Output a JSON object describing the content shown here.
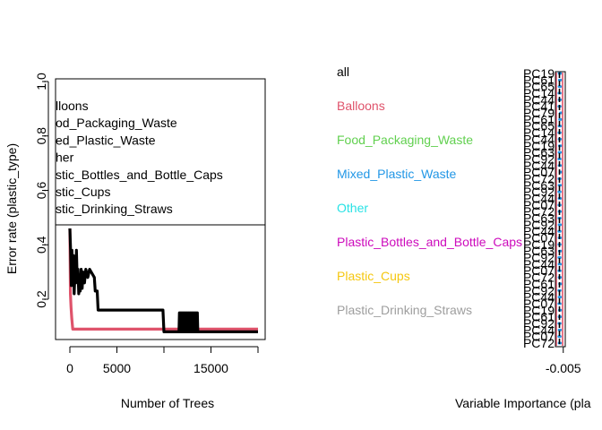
{
  "colors": {
    "all": "#000000",
    "Balloons": "#DF536B",
    "Food_Packaging_Waste": "#61D04F",
    "Mixed_Plastic_Waste": "#2297E6",
    "Other": "#28E2E5",
    "Plastic_Bottles_and_Bottle_Caps": "#CD0BBC",
    "Plastic_Cups": "#F5C710",
    "Plastic_Drinking_Straws": "#9E9E9E"
  },
  "chart_data": [
    {
      "type": "line",
      "xlabel": "Number of Trees",
      "ylabel": "Error rate (plastic_type)",
      "xlim": [
        0,
        20000
      ],
      "ylim": [
        0.06,
        1.04
      ],
      "x_ticks": [
        "0",
        "5000",
        "15000"
      ],
      "x_tick_values": [
        0,
        5000,
        15000
      ],
      "y_ticks": [
        "0.2",
        "0.4",
        "0.6",
        "0.8",
        "1.0"
      ],
      "y_tick_values": [
        0.2,
        0.4,
        0.6,
        0.8,
        1.0
      ],
      "legend_entries": [
        "lloons",
        "od_Packaging_Waste",
        "ed_Plastic_Waste",
        "her",
        "stic_Bottles_and_Bottle_Caps",
        "stic_Cups",
        "stic_Drinking_Straws"
      ],
      "series": [
        {
          "color": "#DF536B",
          "points": [
            [
              0,
              0.46
            ],
            [
              60,
              0.22
            ],
            [
              120,
              0.17
            ],
            [
              200,
              0.13
            ],
            [
              300,
              0.09
            ],
            [
              5000,
              0.09
            ],
            [
              20000,
              0.09
            ]
          ]
        },
        {
          "color": "#000000",
          "points": [
            [
              0,
              0.46
            ],
            [
              80,
              0.38
            ],
            [
              150,
              0.25
            ],
            [
              220,
              0.38
            ],
            [
              300,
              0.3
            ],
            [
              380,
              0.36
            ],
            [
              460,
              0.22
            ],
            [
              540,
              0.3
            ],
            [
              620,
              0.26
            ],
            [
              700,
              0.38
            ],
            [
              780,
              0.27
            ],
            [
              860,
              0.31
            ],
            [
              940,
              0.22
            ],
            [
              1020,
              0.28
            ],
            [
              1100,
              0.23
            ],
            [
              1200,
              0.31
            ],
            [
              1300,
              0.24
            ],
            [
              1400,
              0.3
            ],
            [
              1550,
              0.26
            ],
            [
              1700,
              0.31
            ],
            [
              1900,
              0.28
            ],
            [
              2100,
              0.31
            ],
            [
              2600,
              0.28
            ],
            [
              2700,
              0.23
            ],
            [
              2900,
              0.23
            ],
            [
              3000,
              0.16
            ],
            [
              9900,
              0.16
            ],
            [
              10000,
              0.08
            ],
            [
              11600,
              0.08
            ],
            [
              11650,
              0.15
            ],
            [
              11700,
              0.08
            ],
            [
              11750,
              0.15
            ],
            [
              11800,
              0.08
            ],
            [
              11850,
              0.15
            ],
            [
              11900,
              0.08
            ],
            [
              11950,
              0.15
            ],
            [
              12000,
              0.08
            ],
            [
              12050,
              0.15
            ],
            [
              12100,
              0.08
            ],
            [
              12150,
              0.15
            ],
            [
              12200,
              0.08
            ],
            [
              12250,
              0.15
            ],
            [
              12300,
              0.08
            ],
            [
              12350,
              0.15
            ],
            [
              12400,
              0.08
            ],
            [
              12450,
              0.15
            ],
            [
              12500,
              0.08
            ],
            [
              12550,
              0.15
            ],
            [
              12600,
              0.08
            ],
            [
              12650,
              0.15
            ],
            [
              12700,
              0.08
            ],
            [
              12750,
              0.15
            ],
            [
              12800,
              0.08
            ],
            [
              12850,
              0.15
            ],
            [
              12900,
              0.08
            ],
            [
              12950,
              0.15
            ],
            [
              13000,
              0.08
            ],
            [
              13050,
              0.15
            ],
            [
              13100,
              0.08
            ],
            [
              13150,
              0.15
            ],
            [
              13200,
              0.08
            ],
            [
              13250,
              0.15
            ],
            [
              13300,
              0.08
            ],
            [
              13350,
              0.15
            ],
            [
              13400,
              0.08
            ],
            [
              13450,
              0.15
            ],
            [
              13500,
              0.08
            ],
            [
              13550,
              0.15
            ],
            [
              13600,
              0.08
            ],
            [
              20000,
              0.08
            ]
          ]
        }
      ]
    },
    {
      "type": "bar",
      "xlabel": "Variable Importance (pla",
      "x_ticks": [
        "-0.005"
      ],
      "x_tick_values": [
        -0.005
      ],
      "xlim": [
        -0.006,
        -0.002
      ],
      "class_labels": [
        "all",
        "Balloons",
        "Food_Packaging_Waste",
        "Mixed_Plastic_Waste",
        "Other",
        "Plastic_Bottles_and_Bottle_Caps",
        "Plastic_Cups",
        "Plastic_Drinking_Straws"
      ],
      "variables": [
        "PC19",
        "PC61",
        "PC65",
        "PC14",
        "PC44",
        "PC41",
        "PC79",
        "PC61",
        "PC65",
        "PC14",
        "PC44",
        "PC19",
        "PC63",
        "PC92",
        "PC44",
        "PC07",
        "PC72",
        "PC63",
        "PC92",
        "PC44",
        "PC07",
        "PC72",
        "PC63",
        "PC92",
        "PC44",
        "PC07",
        "PC19",
        "PC63",
        "PC92",
        "PC44",
        "PC07",
        "PC72",
        "PC61",
        "PC92",
        "PC44",
        "PC07",
        "PC19",
        "PC61",
        "PC92",
        "PC44",
        "PC07",
        "PC72"
      ],
      "importance": [
        -0.0045,
        -0.0044,
        -0.0045,
        -0.0046,
        -0.0045,
        -0.0046,
        -0.004,
        -0.0043,
        -0.0045,
        -0.0046,
        -0.0045,
        -0.0044,
        -0.0045,
        -0.0046,
        -0.0045,
        -0.0041,
        -0.0046,
        -0.0045,
        -0.0046,
        -0.0045,
        -0.0046,
        -0.0045,
        -0.0046,
        -0.0045,
        -0.0046,
        -0.0045,
        -0.0046,
        -0.0044,
        -0.0046,
        -0.0045,
        -0.0046,
        -0.0045,
        -0.0043,
        -0.0046,
        -0.0045,
        -0.0046,
        -0.0044,
        -0.0045,
        -0.0046,
        -0.0045,
        -0.0046,
        -0.0045
      ]
    }
  ]
}
